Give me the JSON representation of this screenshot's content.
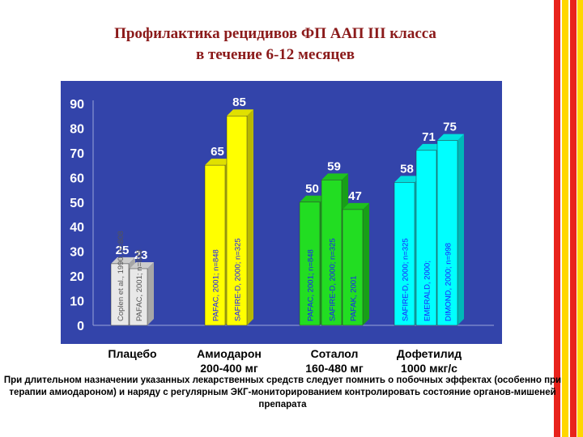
{
  "title_lines": [
    "Профилактика рецидивов ФП ААП III класса",
    "в течение 6-12 месяцев"
  ],
  "footnote": "При длительном назначении указанных лекарственных средств следует помнить о побочных эффектах (особенно при терапии амиодароном) и наряду с регулярным ЭКГ-мониторированием контролировать состояние органов-мишеней препарата",
  "colors": {
    "plot_background": "#3344aa",
    "title": "#8b1a1a",
    "stripe_red": "#e8231c",
    "stripe_yellow": "#ffd700"
  },
  "chart_data": {
    "type": "bar",
    "title": "Профилактика рецидивов ФП ААП III класса в течение 6-12 месяцев",
    "ylim": [
      0,
      90
    ],
    "yticks": [
      "0",
      "10",
      "20",
      "30",
      "40",
      "50",
      "60",
      "70",
      "80",
      "90"
    ],
    "grid": false,
    "categories": [
      {
        "label_lines": [
          "Плацебо"
        ],
        "color": "#e8e8e8",
        "bars": [
          {
            "value": 25,
            "label": "25",
            "study": "Coplen et al., 1990; n=808"
          },
          {
            "value": 23,
            "label": "23",
            "study": "PAFAC, 2001; n=848"
          }
        ]
      },
      {
        "label_lines": [
          "Амиодарон",
          "200-400 мг"
        ],
        "color": "#ffff00",
        "bars": [
          {
            "value": 65,
            "label": "65",
            "study": "PAFAC, 2001; n=848"
          },
          {
            "value": 85,
            "label": "85",
            "study": "SAFIRE-D, 2000; n=325"
          }
        ]
      },
      {
        "label_lines": [
          "Соталол",
          "160-480 мг"
        ],
        "color": "#22dd22",
        "bars": [
          {
            "value": 50,
            "label": "50",
            "study": "PAFAC, 2001; n=848"
          },
          {
            "value": 59,
            "label": "59",
            "study": "SAFIRE-D, 2000; n=325"
          },
          {
            "value": 47,
            "label": "47",
            "study": "PAFAK, 2001"
          }
        ]
      },
      {
        "label_lines": [
          "Дофетилид",
          "1000 мкг/с"
        ],
        "color": "#00ffff",
        "bars": [
          {
            "value": 58,
            "label": "58",
            "study": "SAFIRE-D, 2000; n=325"
          },
          {
            "value": 71,
            "label": "71",
            "study": "EMERALD, 2000;"
          },
          {
            "value": 75,
            "label": "75",
            "study": "DIMOND, 2000; n=998"
          }
        ]
      }
    ]
  }
}
